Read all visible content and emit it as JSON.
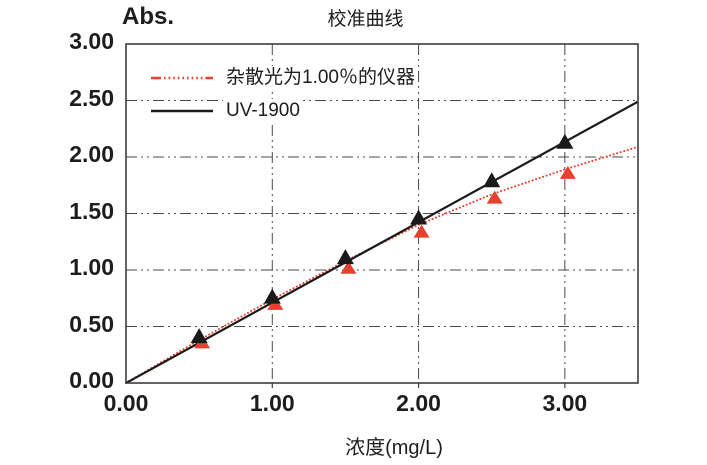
{
  "chart_data": {
    "type": "line",
    "title": "校准曲线",
    "ylabel": "Abs.",
    "xlabel": "浓度(mg/L)",
    "xlim": [
      0,
      3.5
    ],
    "ylim": [
      0,
      3.0
    ],
    "grid": "dash-dot gridlines at every labeled tick, framed plot area",
    "legend_position": "top-left inside plot",
    "x_ticks": [
      {
        "value": 0.0,
        "label": "0.00"
      },
      {
        "value": 1.0,
        "label": "1.00"
      },
      {
        "value": 2.0,
        "label": "2.00"
      },
      {
        "value": 3.0,
        "label": "3.00"
      }
    ],
    "y_ticks": [
      {
        "value": 0.0,
        "label": "0.00"
      },
      {
        "value": 0.5,
        "label": "0.50"
      },
      {
        "value": 1.0,
        "label": "1.00"
      },
      {
        "value": 1.5,
        "label": "1.50"
      },
      {
        "value": 2.0,
        "label": "2.00"
      },
      {
        "value": 2.5,
        "label": "2.50"
      },
      {
        "value": 3.0,
        "label": "3.00"
      }
    ],
    "series": [
      {
        "name": "杂散光为1.00％的仪器",
        "color": "#e8402f",
        "line_style": "dotted",
        "marker": "triangle-up",
        "points_x": [
          0.5,
          1.0,
          1.5,
          2.0,
          2.5,
          3.0
        ],
        "points_y": [
          0.36,
          0.7,
          1.02,
          1.34,
          1.64,
          1.86
        ],
        "curve_x": [
          0,
          0.5,
          1.0,
          1.5,
          2.0,
          2.5,
          3.0,
          3.5
        ],
        "curve_y": [
          0,
          0.38,
          0.74,
          1.08,
          1.4,
          1.67,
          1.89,
          2.09
        ]
      },
      {
        "name": "UV-1900",
        "color": "#1a1a1a",
        "line_style": "solid",
        "marker": "triangle-up",
        "points_x": [
          0.5,
          1.0,
          1.5,
          2.0,
          2.5,
          3.0
        ],
        "points_y": [
          0.41,
          0.76,
          1.11,
          1.46,
          1.79,
          2.13
        ],
        "curve_x": [
          0,
          3.5
        ],
        "curve_y": [
          0,
          2.49
        ]
      }
    ],
    "frame_color": "#3d3d3d",
    "gridline_color": "#4a4a4a"
  }
}
